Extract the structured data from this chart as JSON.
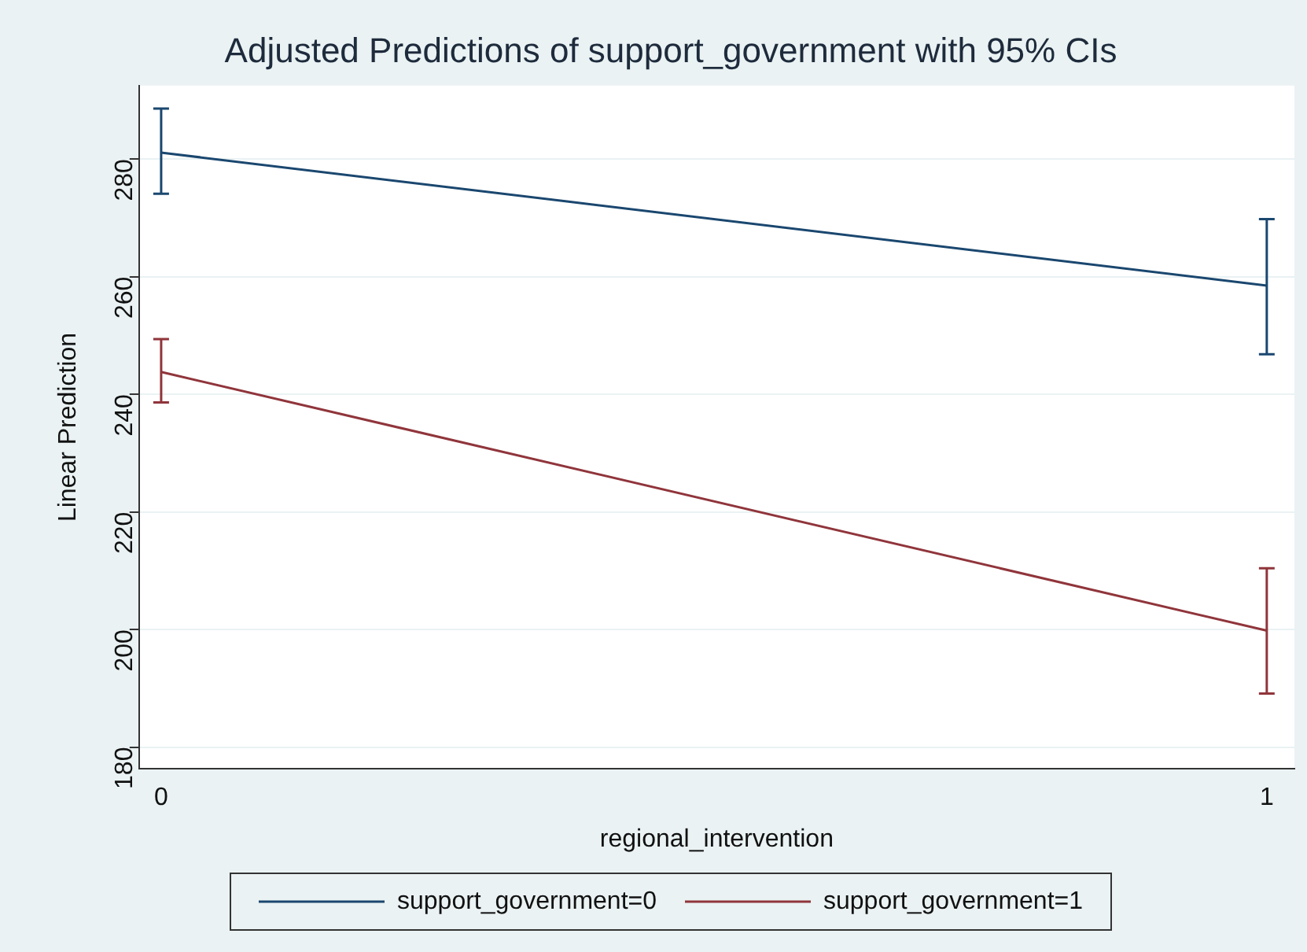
{
  "chart_data": {
    "type": "line",
    "title": "Adjusted Predictions of support_government with 95% CIs",
    "xlabel": "regional_intervention",
    "ylabel": "Linear Prediction",
    "x": [
      0,
      1
    ],
    "series": [
      {
        "name": "support_government=0",
        "color": "#1a476f",
        "values": [
          281.1,
          258.5
        ],
        "errors": [
          [
            274.1,
            288.6
          ],
          [
            246.8,
            269.8
          ]
        ]
      },
      {
        "name": "support_government=1",
        "color": "#90353b",
        "values": [
          243.8,
          199.8
        ],
        "errors": [
          [
            238.6,
            249.4
          ],
          [
            189.1,
            210.4
          ]
        ]
      }
    ],
    "xlim": [
      -0.02,
      1.025
    ],
    "xticks": [
      0,
      1
    ],
    "ylim": [
      176.3,
      292.5
    ],
    "yticks": [
      180,
      200,
      220,
      240,
      260,
      280
    ],
    "grid": "y",
    "legend": "bottom",
    "marker": "none",
    "line_style": "solid"
  }
}
